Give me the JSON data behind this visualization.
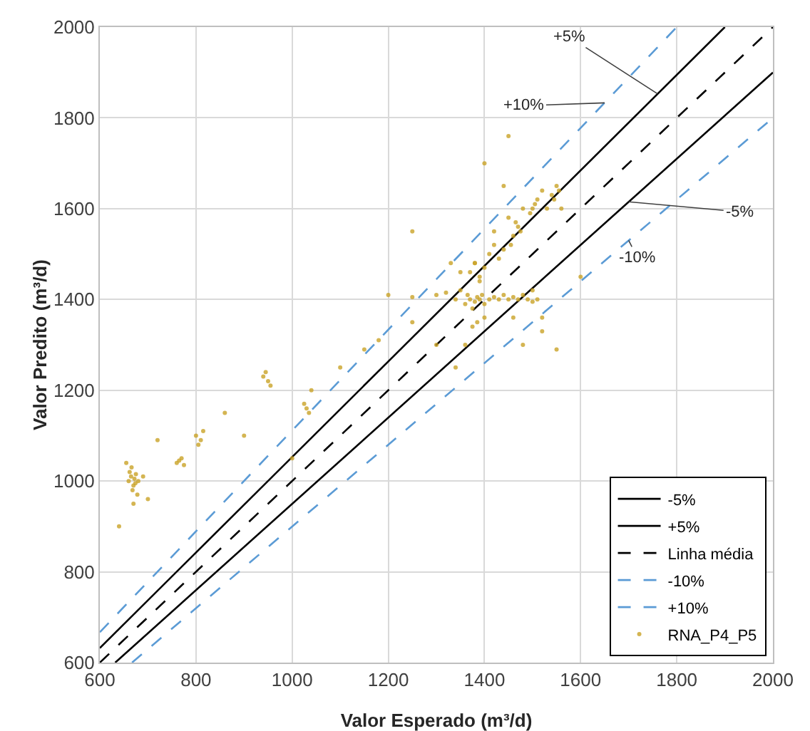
{
  "chart_data": {
    "type": "scatter",
    "xlabel": "Valor Esperado (m³/d)",
    "ylabel": "Valor Predito (m³/d)",
    "xlim": [
      600,
      2000
    ],
    "ylim": [
      600,
      2000
    ],
    "xticks": [
      600,
      800,
      1000,
      1200,
      1400,
      1600,
      1800,
      2000
    ],
    "yticks": [
      600,
      800,
      1000,
      1200,
      1400,
      1600,
      1800,
      2000
    ],
    "grid": true,
    "legend": "bottom right",
    "annotations": [
      {
        "text": "+5%",
        "x": 1760,
        "y": 1853
      },
      {
        "text": "-5%",
        "x": 1700,
        "y": 1615
      },
      {
        "text": "+10%",
        "x": 1650,
        "y": 1833
      },
      {
        "text": "-10%",
        "x": 1700,
        "y": 1530
      }
    ],
    "series": [
      {
        "name": "-5%",
        "type": "line",
        "color": "#000000",
        "line_style": "solid",
        "marker": "none",
        "x": [
          632,
          2000
        ],
        "values": [
          600,
          1900
        ]
      },
      {
        "name": "+5%",
        "type": "line",
        "color": "#000000",
        "line_style": "solid",
        "marker": "none",
        "x": [
          600,
          1900
        ],
        "values": [
          632,
          2000
        ]
      },
      {
        "name": "Linha média",
        "type": "line",
        "color": "#000000",
        "line_style": "dashed",
        "marker": "none",
        "x": [
          600,
          2000
        ],
        "values": [
          600,
          2000
        ]
      },
      {
        "name": "-10%",
        "type": "line",
        "color": "#5b9bd5",
        "line_style": "dashed",
        "marker": "none",
        "x": [
          667,
          2000
        ],
        "values": [
          600,
          1800
        ]
      },
      {
        "name": "+10%",
        "type": "line",
        "color": "#5b9bd5",
        "line_style": "dashed",
        "marker": "none",
        "x": [
          600,
          1800
        ],
        "values": [
          667,
          2000
        ]
      },
      {
        "name": "RNA_P4_P5",
        "color": "#c9a227",
        "marker": "circle",
        "x": [
          660,
          665,
          670,
          672,
          675,
          668,
          662,
          678,
          670,
          666,
          674,
          680,
          655,
          690,
          700,
          640,
          720,
          760,
          770,
          775,
          765,
          800,
          810,
          815,
          805,
          860,
          940,
          950,
          955,
          945,
          1030,
          1035,
          1025,
          1040,
          1000,
          1100,
          1150,
          1200,
          1250,
          1300,
          1320,
          1340,
          1350,
          1360,
          1365,
          1370,
          1375,
          1380,
          1385,
          1390,
          1395,
          1400,
          1370,
          1380,
          1390,
          1360,
          1375,
          1385,
          1400,
          1410,
          1420,
          1430,
          1440,
          1450,
          1460,
          1470,
          1480,
          1490,
          1500,
          1510,
          1460,
          1470,
          1455,
          1465,
          1475,
          1500,
          1505,
          1495,
          1510,
          1520,
          1530,
          1540,
          1550,
          1555,
          1545,
          1560,
          1410,
          1420,
          1430,
          1440,
          1400,
          1390,
          1380,
          1420,
          1450,
          1480,
          1500,
          1460,
          1520,
          1350,
          1330,
          1300,
          1250,
          1600,
          1480,
          1520,
          1440,
          1400,
          1340,
          900,
          1180,
          1250,
          1450,
          1550
        ],
        "values": [
          1000,
          1010,
          990,
          1005,
          1015,
          980,
          1020,
          970,
          950,
          1030,
          995,
          1000,
          1040,
          1010,
          960,
          900,
          1090,
          1040,
          1050,
          1035,
          1045,
          1100,
          1090,
          1110,
          1080,
          1150,
          1230,
          1220,
          1210,
          1240,
          1160,
          1150,
          1170,
          1200,
          1050,
          1250,
          1290,
          1410,
          1405,
          1410,
          1415,
          1400,
          1420,
          1390,
          1410,
          1400,
          1380,
          1395,
          1405,
          1400,
          1410,
          1390,
          1460,
          1480,
          1440,
          1300,
          1340,
          1350,
          1360,
          1400,
          1405,
          1400,
          1410,
          1400,
          1405,
          1400,
          1410,
          1400,
          1395,
          1400,
          1540,
          1560,
          1520,
          1570,
          1550,
          1600,
          1610,
          1590,
          1620,
          1640,
          1600,
          1630,
          1650,
          1640,
          1620,
          1600,
          1500,
          1520,
          1490,
          1510,
          1470,
          1450,
          1480,
          1550,
          1580,
          1600,
          1420,
          1360,
          1360,
          1460,
          1480,
          1300,
          1350,
          1450,
          1300,
          1330,
          1650,
          1700,
          1250,
          1100,
          1310,
          1550,
          1760,
          1290
        ]
      }
    ]
  }
}
